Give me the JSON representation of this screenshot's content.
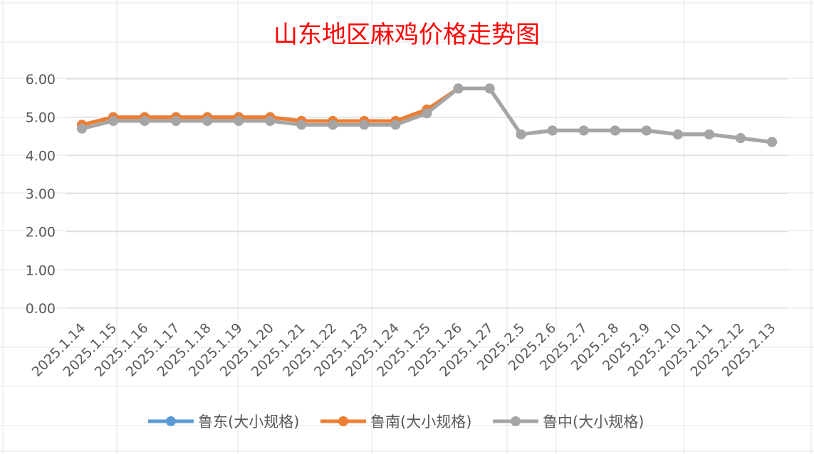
{
  "chart_data": {
    "type": "line",
    "title": "山东地区麻鸡价格走势图",
    "xlabel": "",
    "ylabel": "",
    "ylim": [
      0,
      6
    ],
    "yticks": [
      "0.00",
      "1.00",
      "2.00",
      "3.00",
      "4.00",
      "5.00",
      "6.00"
    ],
    "categories": [
      "2025.1.14",
      "2025.1.15",
      "2025.1.16",
      "2025.1.17",
      "2025.1.18",
      "2025.1.19",
      "2025.1.20",
      "2025.1.21",
      "2025.1.22",
      "2025.1.23",
      "2025.1.24",
      "2025.1.25",
      "2025.1.26",
      "2025.1.27",
      "2025.2.5",
      "2025.2.6",
      "2025.2.7",
      "2025.2.8",
      "2025.2.9",
      "2025.2.10",
      "2025.2.11",
      "2025.2.12",
      "2025.2.13"
    ],
    "series": [
      {
        "name": "鲁东(大小规格)",
        "color": "#5b9bd5",
        "values": [
          4.8,
          5.0,
          5.0,
          5.0,
          5.0,
          5.0,
          5.0,
          4.9,
          4.9,
          4.9,
          4.9,
          5.2,
          5.75,
          5.75,
          4.55,
          4.65,
          4.65,
          4.65,
          4.65,
          4.55,
          4.55,
          4.45,
          4.35
        ]
      },
      {
        "name": "鲁南(大小规格)",
        "color": "#ed7d31",
        "values": [
          4.8,
          5.0,
          5.0,
          5.0,
          5.0,
          5.0,
          5.0,
          4.9,
          4.9,
          4.9,
          4.9,
          5.2,
          5.75,
          5.75,
          4.55,
          4.65,
          4.65,
          4.65,
          4.65,
          4.55,
          4.55,
          4.45,
          4.35
        ]
      },
      {
        "name": "鲁中(大小规格)",
        "color": "#a5a5a5",
        "values": [
          4.7,
          4.9,
          4.9,
          4.9,
          4.9,
          4.9,
          4.9,
          4.8,
          4.8,
          4.8,
          4.8,
          5.1,
          5.75,
          5.75,
          4.55,
          4.65,
          4.65,
          4.65,
          4.65,
          4.55,
          4.55,
          4.45,
          4.35
        ]
      }
    ],
    "grid": true,
    "legend_position": "bottom"
  }
}
